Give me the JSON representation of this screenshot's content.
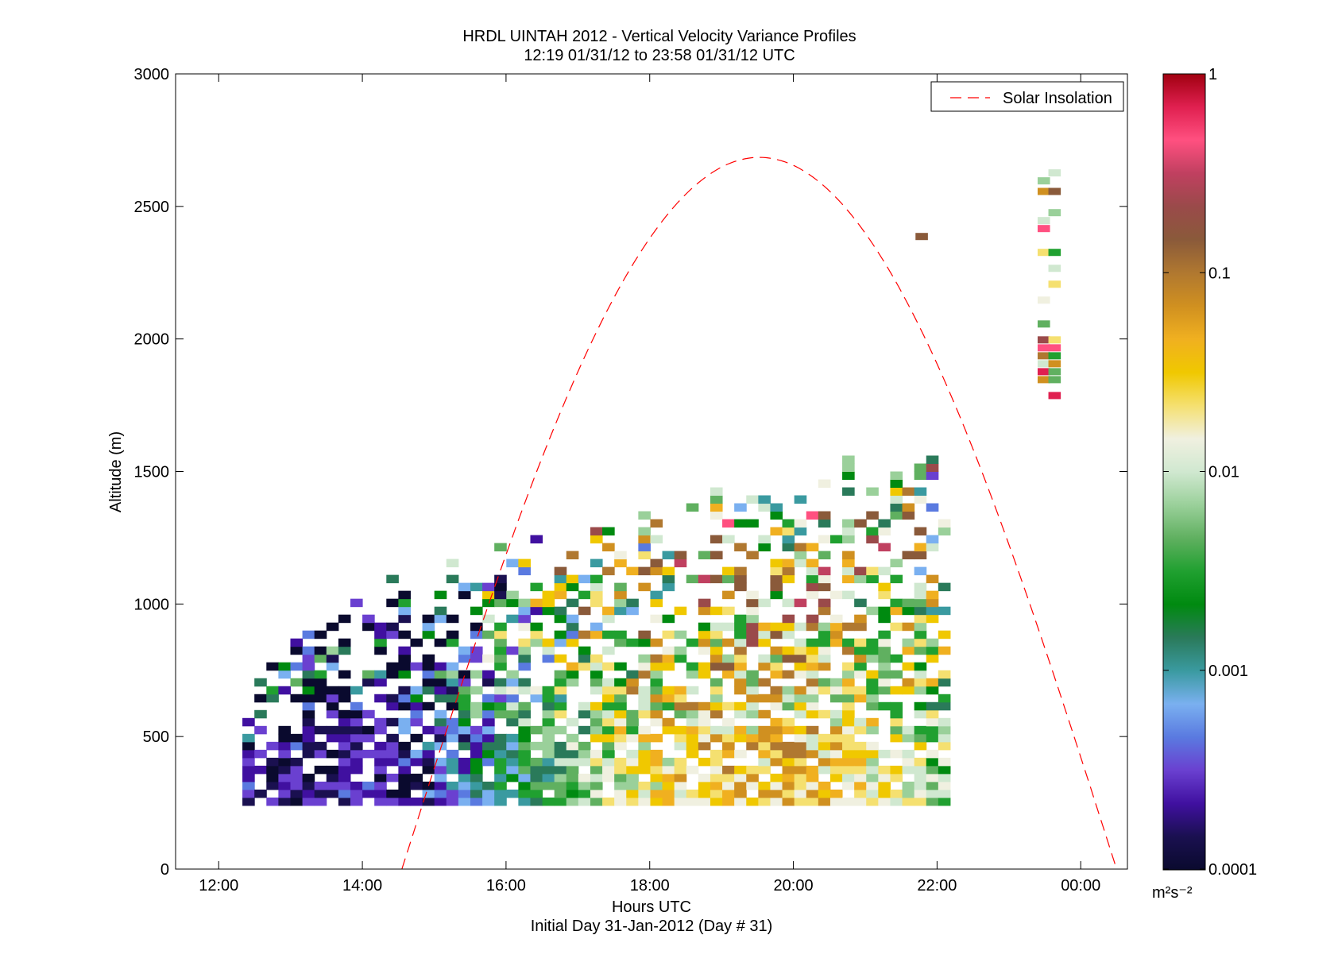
{
  "chart_data": {
    "type": "heatmap",
    "title": "HRDL UINTAH 2012 - Vertical Velocity Variance Profiles",
    "subtitle": "12:19 01/31/12 to 23:58 01/31/12  UTC",
    "xlabel": "Hours UTC",
    "xlabel2": "Initial Day 31-Jan-2012 (Day # 31)",
    "ylabel": "Altitude (m)",
    "xlim": [
      11.4,
      24.65
    ],
    "ylim": [
      0,
      3000
    ],
    "x_ticks": [
      {
        "value": 12,
        "label": "12:00"
      },
      {
        "value": 14,
        "label": "14:00"
      },
      {
        "value": 16,
        "label": "16:00"
      },
      {
        "value": 18,
        "label": "18:00"
      },
      {
        "value": 20,
        "label": "20:00"
      },
      {
        "value": 22,
        "label": "22:00"
      },
      {
        "value": 24,
        "label": "00:00"
      }
    ],
    "y_ticks": [
      {
        "value": 0,
        "label": "0"
      },
      {
        "value": 500,
        "label": "500"
      },
      {
        "value": 1000,
        "label": "1000"
      },
      {
        "value": 1500,
        "label": "1500"
      },
      {
        "value": 2000,
        "label": "2000"
      },
      {
        "value": 2500,
        "label": "2500"
      },
      {
        "value": 3000,
        "label": "3000"
      }
    ],
    "legend": {
      "entries": [
        "Solar Insolation"
      ],
      "placement": "top-right"
    },
    "solar_curve": {
      "series_name": "Solar Insolation",
      "color": "#ff0000",
      "start": 14.55,
      "end": 24.5,
      "peak_x": 19.55,
      "peak_y": 2685
    },
    "colorbar": {
      "scale": "log",
      "range": [
        0.0001,
        1
      ],
      "ticks": [
        {
          "value": 1,
          "label": "1"
        },
        {
          "value": 0.1,
          "label": "0.1"
        },
        {
          "value": 0.01,
          "label": "0.01"
        },
        {
          "value": 0.001,
          "label": "0.001"
        },
        {
          "value": 0.0001,
          "label": "0.0001"
        }
      ],
      "unit_label": "m²s⁻²",
      "stops": [
        "#0a0a2e",
        "#1a1050",
        "#4010a0",
        "#6a40d0",
        "#5a7ae0",
        "#7ab0f0",
        "#3a9aa0",
        "#2a7a5a",
        "#008a10",
        "#20a030",
        "#60b060",
        "#9ad09a",
        "#d0e8d0",
        "#f0f0e0",
        "#f5e070",
        "#f0c800",
        "#f0b020",
        "#d09020",
        "#b07830",
        "#8a5a3a",
        "#9a4a4a",
        "#c04060",
        "#ff5080",
        "#e02050",
        "#a00010"
      ]
    },
    "time_step_h": 0.167,
    "alt_step_m": 30,
    "x0": 12.33,
    "n_cols": 59,
    "high_column_x": [
      23.4,
      23.55
    ],
    "high_rows": [
      {
        "col": 0,
        "y": 2580
      },
      {
        "col": 0,
        "y": 2540
      },
      {
        "col": 1,
        "y": 2610
      },
      {
        "col": 1,
        "y": 2540
      },
      {
        "col": 0,
        "y": 2430
      },
      {
        "col": 1,
        "y": 2460
      },
      {
        "col": 0,
        "y": 2400
      },
      {
        "col": 0,
        "y": 2310
      },
      {
        "col": 1,
        "y": 2310
      },
      {
        "col": 1,
        "y": 2250
      },
      {
        "col": 1,
        "y": 2190
      },
      {
        "col": 0,
        "y": 2130
      },
      {
        "col": 0,
        "y": 2040
      },
      {
        "col": 0,
        "y": 1980
      },
      {
        "col": 1,
        "y": 1980
      },
      {
        "col": 0,
        "y": 1950
      },
      {
        "col": 1,
        "y": 1950
      },
      {
        "col": 0,
        "y": 1920
      },
      {
        "col": 1,
        "y": 1920
      },
      {
        "col": 0,
        "y": 1890
      },
      {
        "col": 1,
        "y": 1890
      },
      {
        "col": 0,
        "y": 1860
      },
      {
        "col": 1,
        "y": 1860
      },
      {
        "col": 0,
        "y": 1830
      },
      {
        "col": 1,
        "y": 1830
      },
      {
        "col": 1,
        "y": 1770
      }
    ],
    "isolated_cells": [
      {
        "x": 21.7,
        "y": 2370,
        "v": 0.15
      }
    ]
  }
}
